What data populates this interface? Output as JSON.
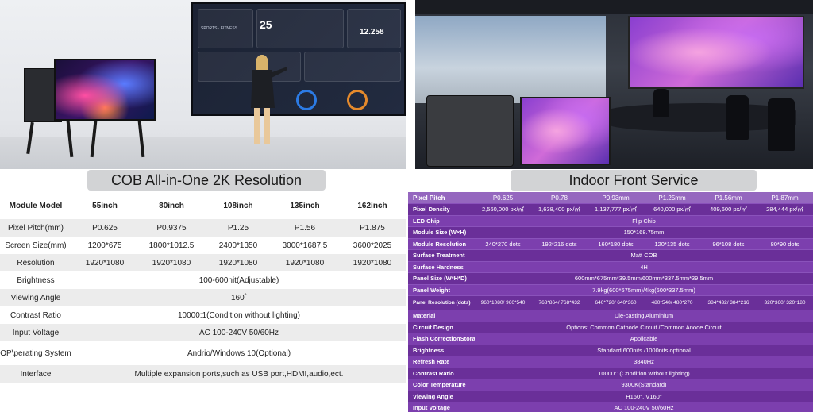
{
  "left_panel": {
    "caption": "COB All-in-One 2K Resolution",
    "header": {
      "label": "Module Model",
      "models": [
        "55inch",
        "80inch",
        "108inch",
        "135inch",
        "162inch"
      ]
    },
    "rows": [
      {
        "label": "Pixel Pitch(mm)",
        "values": [
          "P0.625",
          "P0.9375",
          "P1.25",
          "P1.56",
          "P1.875"
        ]
      },
      {
        "label": "Screen Size(mm)",
        "values": [
          "1200*675",
          "1800*1012.5",
          "2400*1350",
          "3000*1687.5",
          "3600*2025"
        ]
      },
      {
        "label": "Resolution",
        "values": [
          "1920*1080",
          "1920*1080",
          "1920*1080",
          "1920*1080",
          "1920*1080"
        ]
      },
      {
        "label": "Brightness",
        "span": "100-600nit(Adjustable)"
      },
      {
        "label": "Viewing Angle",
        "span": "160˚"
      },
      {
        "label": "Contrast Ratio",
        "span": "10000:1(Condition without lighting)"
      },
      {
        "label": "Input Voltage",
        "span": "AC 100-240V 50/60Hz"
      },
      {
        "label": "OP\\perating System",
        "span": "Andrio/Windows 10(Optional)"
      },
      {
        "label": "Interface",
        "span": "Multiple expansion ports,such as USB port,HDMI,audio,ect."
      }
    ]
  },
  "right_panel": {
    "caption": "Indoor Front Service",
    "header": {
      "label": "Pixel Pitch",
      "values": [
        "P0.625",
        "P0.78",
        "P0.93mm",
        "P1.25mm",
        "P1.56mm",
        "P1.87mm"
      ]
    },
    "density": {
      "label": "Pixel Density",
      "values": [
        "2,560,000 px/㎡",
        "1,638,400 px/㎡",
        "1,137,777 px/㎡",
        "640,000 px/㎡",
        "409,600 px/㎡",
        "284,444 px/㎡"
      ]
    },
    "led_chip": {
      "label": "LED Chip",
      "value": "Flip Chip"
    },
    "module_size": {
      "label": "Module Size (W×H)",
      "value": "150*168.75mm"
    },
    "module_resolution": {
      "label": "Module Resolution",
      "values": [
        "240*270 dots",
        "192*216 dots",
        "160*180 dots",
        "120*135 dots",
        "96*108 dots",
        "80*90 dots"
      ]
    },
    "surface_treatment": {
      "label": "Surface Treatment",
      "value": "Matt COB"
    },
    "surface_hardness": {
      "label": "Surface Hardness",
      "value": "4H"
    },
    "panel_size": {
      "label": "Panel Size (W*H*D)",
      "value": "600mm*675mm*39.5mm/600mm*337.5mm*39.5mm"
    },
    "panel_weight": {
      "label": "Panel Weight",
      "value": "7.9kg(600*675mm)/4kg(600*337.5mm)"
    },
    "panel_resolution": {
      "label": "Panel Resolution (dots)",
      "values": [
        "960*1080/ 960*540",
        "768*864/ 768*432",
        "640*720/ 640*360",
        "480*540/ 480*270",
        "384*432/ 384*216",
        "320*360/ 320*180"
      ]
    },
    "material": {
      "label": "Material",
      "value": "Die-casting Aluminium"
    },
    "circuit_design": {
      "label": "Circuit Design",
      "value": "Options: Common Cathode Circuit /Common Anode Circuit"
    },
    "flash_correction": {
      "label": "Flash CorrectionStorage",
      "value": "Applicabie"
    },
    "brightness": {
      "label": "Brightness",
      "value": "Standard 600nits /1000nits optional"
    },
    "refresh_rate": {
      "label": "Refresh Rate",
      "value": "3840Hz"
    },
    "contrast_ratio": {
      "label": "Contrast Ratio",
      "value": "10000:1(Condition without lighting)"
    },
    "color_temperature": {
      "label": "Color Temperature",
      "value": "9300K(Standard)"
    },
    "viewing_angle": {
      "label": "Viewing Angle",
      "value": "H160°, V160°"
    },
    "input_voltage": {
      "label": "Input Voltage",
      "value": "AC 100-240V 50/60Hz"
    }
  },
  "dashboard": {
    "numbers": [
      "25",
      "12.258"
    ],
    "labels": [
      "SPORTS · FITNESS"
    ]
  },
  "colors": {
    "right_table_bg": "#6a2f99",
    "right_table_alt": "#7c3fae",
    "caption_bg": "#d2d3d5"
  }
}
